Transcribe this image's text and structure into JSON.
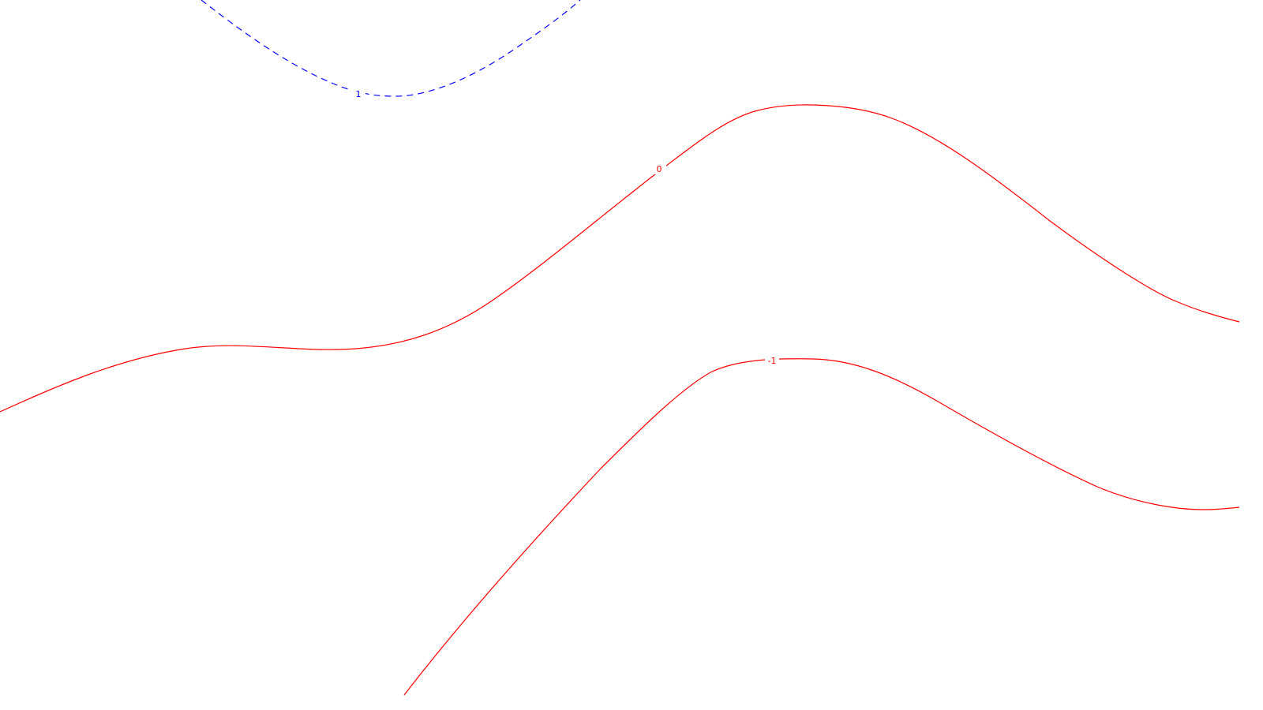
{
  "chart_data": {
    "type": "contour",
    "background": "#ffffff",
    "levels": [
      {
        "level": "1",
        "style": "dashed",
        "color": "#0000ff"
      },
      {
        "level": "0",
        "style": "solid",
        "color": "#ff0000"
      },
      {
        "level": "-1",
        "style": "solid",
        "color": "#ff0000"
      }
    ]
  }
}
